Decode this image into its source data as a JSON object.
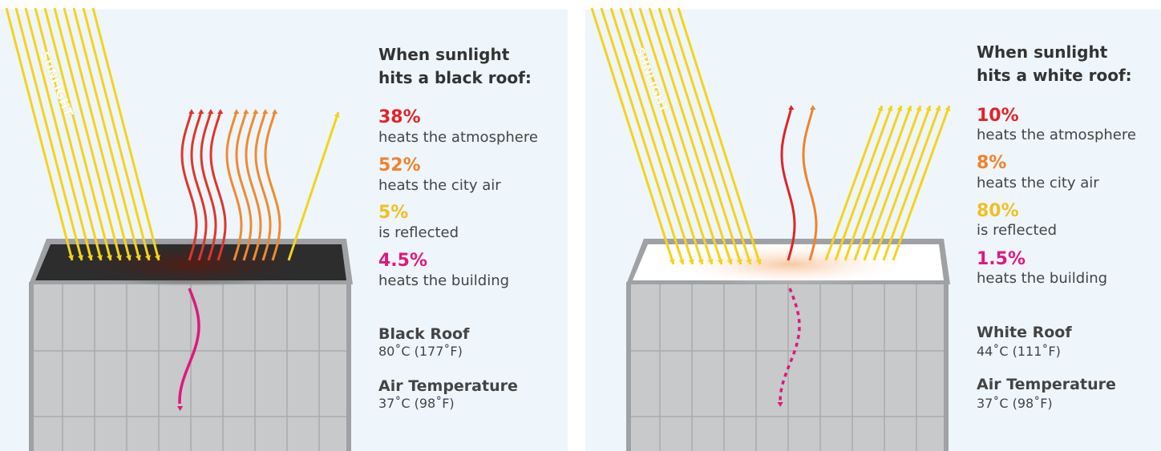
{
  "panels": [
    {
      "sunlight_label": "SUNLIGHT",
      "heading_line1": "When sunlight",
      "heading_line2": "hits a black roof:",
      "stats": [
        {
          "value": "38%",
          "text": "heats the atmosphere"
        },
        {
          "value": "52%",
          "text": "heats the city air"
        },
        {
          "value": "5%",
          "text": "is reflected"
        },
        {
          "value": "4.5%",
          "text": "heats the building"
        }
      ],
      "roof": {
        "title": "Black Roof",
        "temp": "80˚C (177˚F)"
      },
      "air": {
        "title": "Air Temperature",
        "temp": "37˚C (98˚F)"
      }
    },
    {
      "sunlight_label": "SUNLIGHT",
      "heading_line1": "When sunlight",
      "heading_line2": "hits a white roof:",
      "stats": [
        {
          "value": "10%",
          "text": "heats the atmosphere"
        },
        {
          "value": "8%",
          "text": "heats the city air"
        },
        {
          "value": "80%",
          "text": "is reflected"
        },
        {
          "value": "1.5%",
          "text": "heats the building"
        }
      ],
      "roof": {
        "title": "White Roof",
        "temp": "44˚C (111˚F)"
      },
      "air": {
        "title": "Air Temperature",
        "temp": "37˚C (98˚F)"
      }
    }
  ]
}
